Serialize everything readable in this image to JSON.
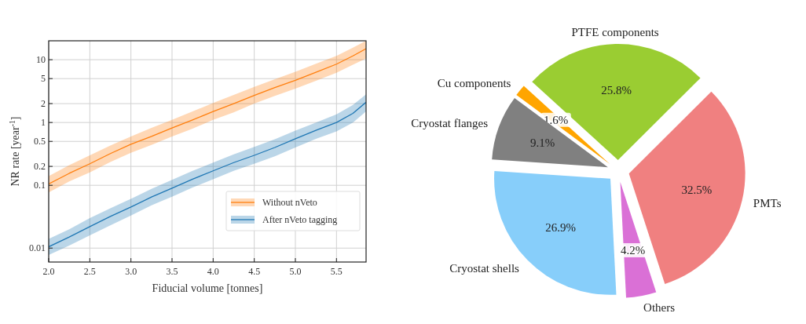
{
  "chart_data": [
    {
      "type": "line",
      "xlabel": "Fiducial volume [tonnes]",
      "ylabel": "NR rate [year$^{-1}$]",
      "log": "y",
      "grid": true,
      "legend": "bottom right",
      "xlim": [
        2.0,
        5.86
      ],
      "ylim": [
        0.006,
        20
      ],
      "xticks": [
        {
          "value": 2,
          "label": "2.0"
        },
        2.5,
        {
          "value": 3,
          "label": "3.0"
        },
        3.5,
        {
          "value": 4,
          "label": "4.0"
        },
        4.5,
        {
          "value": 5,
          "label": "5.0"
        },
        5.5
      ],
      "yticks": [
        0.01,
        0.1,
        0.2,
        0.5,
        1,
        2,
        5,
        10
      ],
      "x": [
        2.0,
        2.25,
        2.5,
        2.75,
        3.0,
        3.25,
        3.5,
        3.75,
        4.0,
        4.25,
        4.5,
        4.75,
        5.0,
        5.25,
        5.5,
        5.7,
        5.86
      ],
      "series": [
        {
          "name": "Without nVeto",
          "color": "#ff7f0e",
          "values": [
            0.105,
            0.155,
            0.22,
            0.32,
            0.45,
            0.6,
            0.82,
            1.1,
            1.5,
            2.0,
            2.7,
            3.6,
            4.7,
            6.3,
            8.5,
            11.5,
            15
          ],
          "lower": [
            0.077,
            0.115,
            0.16,
            0.235,
            0.33,
            0.44,
            0.6,
            0.8,
            1.1,
            1.45,
            2.0,
            2.65,
            3.45,
            4.6,
            6.2,
            8.3,
            10.5
          ],
          "upper": [
            0.14,
            0.21,
            0.3,
            0.43,
            0.6,
            0.82,
            1.1,
            1.5,
            2.05,
            2.75,
            3.7,
            4.9,
            6.4,
            8.6,
            11.5,
            15.5,
            20
          ]
        },
        {
          "name": "After nVeto tagging",
          "color": "#1f77b4",
          "values": [
            0.0105,
            0.015,
            0.022,
            0.032,
            0.045,
            0.065,
            0.09,
            0.125,
            0.17,
            0.23,
            0.3,
            0.4,
            0.55,
            0.75,
            1.0,
            1.4,
            2.1
          ],
          "lower": [
            0.0078,
            0.011,
            0.016,
            0.023,
            0.033,
            0.048,
            0.066,
            0.092,
            0.125,
            0.17,
            0.22,
            0.29,
            0.4,
            0.55,
            0.72,
            1.0,
            1.5
          ],
          "upper": [
            0.014,
            0.02,
            0.03,
            0.043,
            0.061,
            0.088,
            0.122,
            0.17,
            0.23,
            0.31,
            0.41,
            0.54,
            0.74,
            1.0,
            1.35,
            1.9,
            2.8
          ]
        }
      ]
    },
    {
      "type": "pie",
      "categories": [
        "PMTs",
        "PTFE components",
        "Cu components",
        "Cryostat flanges",
        "Cryostat shells",
        "Others"
      ],
      "values": [
        32.5,
        25.8,
        1.6,
        9.1,
        26.9,
        4.2
      ],
      "colors": [
        "#f08080",
        "#9acd32",
        "#ffa500",
        "#808080",
        "#87cefa",
        "#da70d6"
      ],
      "value_labels": [
        "32.5%",
        "25.8%",
        "1.6%",
        "9.1%",
        "26.9%",
        "4.2%"
      ]
    }
  ]
}
